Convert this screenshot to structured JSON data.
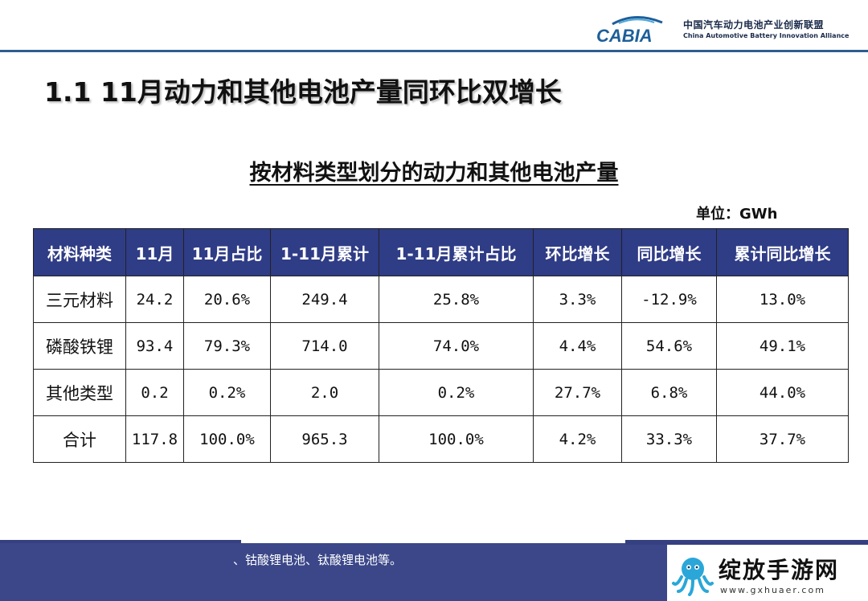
{
  "logo": {
    "brand": "CABIA",
    "name_cn": "中国汽车动力电池产业创新联盟",
    "name_en": "China Automotive Battery Innovation Alliance"
  },
  "slide_title": "1.1  11月动力和其他电池产量同环比双增长",
  "table_title": "按材料类型划分的动力和其他电池产量",
  "unit_label": "单位：GWh",
  "table": {
    "headers": [
      "材料种类",
      "11月",
      "11月占比",
      "1-11月累计",
      "1-11月累计占比",
      "环比增长",
      "同比增长",
      "累计同比增长"
    ],
    "rows": [
      [
        "三元材料",
        "24.2",
        "20.6%",
        "249.4",
        "25.8%",
        "3.3%",
        "-12.9%",
        "13.0%"
      ],
      [
        "磷酸铁锂",
        "93.4",
        "79.3%",
        "714.0",
        "74.0%",
        "4.4%",
        "54.6%",
        "49.1%"
      ],
      [
        "其他类型",
        "0.2",
        "0.2%",
        "2.0",
        "0.2%",
        "27.7%",
        "6.8%",
        "44.0%"
      ],
      [
        "合计",
        "117.8",
        "100.0%",
        "965.3",
        "100.0%",
        "4.2%",
        "33.3%",
        "37.7%"
      ]
    ]
  },
  "footnote": "、钴酸锂电池、钛酸锂电池等。",
  "watermark": {
    "title": "绽放手游网",
    "url": "www.gxhuaer.com"
  },
  "colors": {
    "header_bg": "#2f3c86",
    "header_line": "#2e5d8f",
    "footer_bg": "#3b4789"
  }
}
